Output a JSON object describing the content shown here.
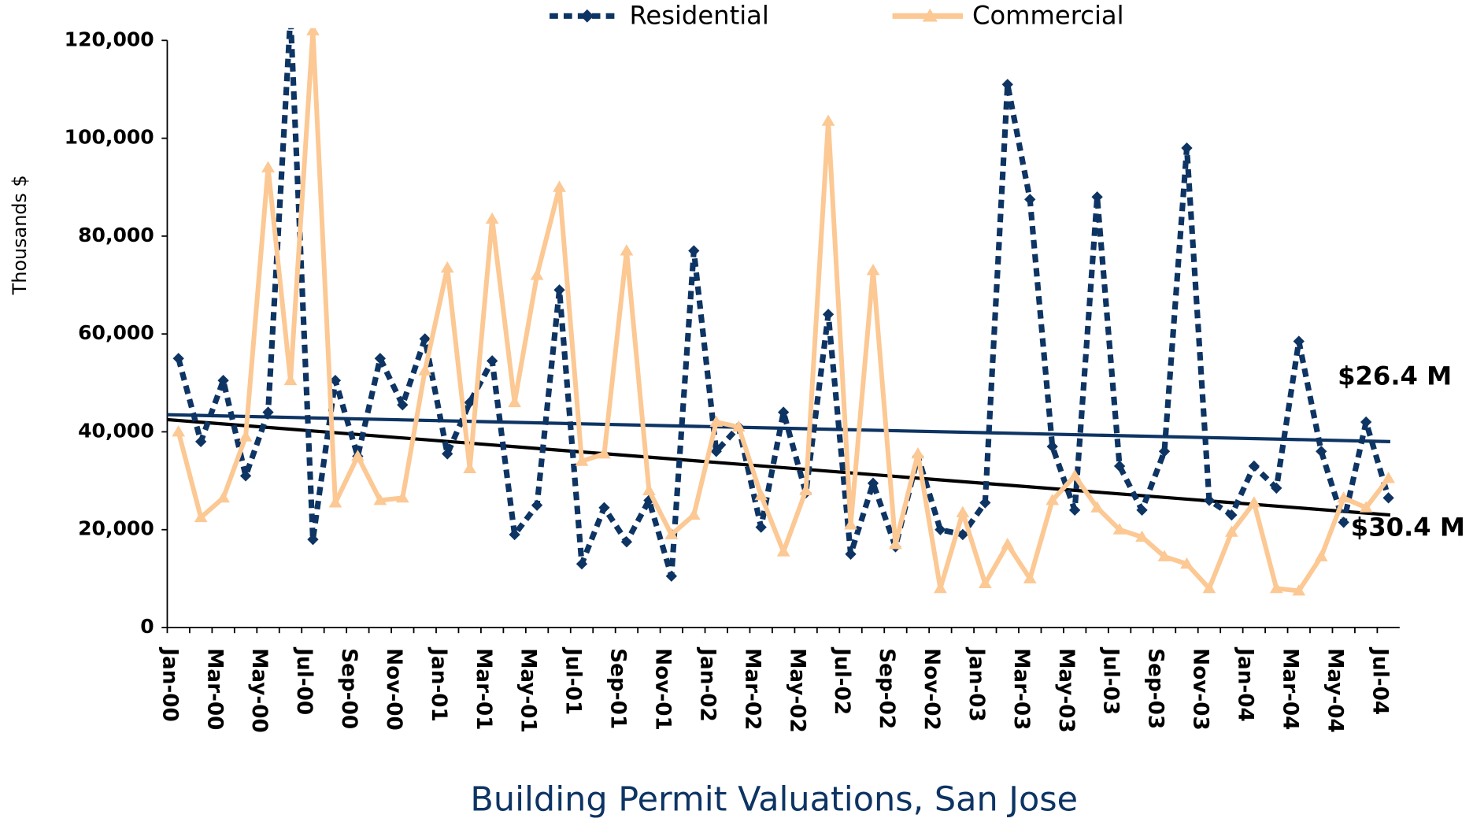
{
  "chart_data": {
    "type": "line",
    "title": "Building Permit Valuations, San Jose",
    "y_label": "Thousands $",
    "categories": [
      "Jan-00",
      null,
      "Mar-00",
      null,
      "May-00",
      null,
      "Jul-00",
      null,
      "Sep-00",
      null,
      "Nov-00",
      null,
      "Jan-01",
      null,
      "Mar-01",
      null,
      "May-01",
      null,
      "Jul-01",
      null,
      "Sep-01",
      null,
      "Nov-01",
      null,
      "Jan-02",
      null,
      "Mar-02",
      null,
      "May-02",
      null,
      "Jul-02",
      null,
      "Sep-02",
      null,
      "Nov-02",
      null,
      "Jan-03",
      null,
      "Mar-03",
      null,
      "May-03",
      null,
      "Jul-03",
      null,
      "Sep-03",
      null,
      "Nov-03",
      null,
      "Jan-04",
      null,
      "Mar-04",
      null,
      "May-04",
      null,
      "Jul-04"
    ],
    "series": [
      {
        "name": "Residential",
        "color": "#0d3463",
        "style": "dashed",
        "marker": "diamond",
        "values": [
          55000,
          38000,
          50500,
          31000,
          44000,
          125000,
          18000,
          50500,
          35000,
          55000,
          45500,
          59000,
          35500,
          46000,
          54500,
          19000,
          25000,
          69000,
          13000,
          24500,
          17500,
          26000,
          10500,
          77000,
          36000,
          41000,
          20500,
          44000,
          27500,
          64000,
          15000,
          29500,
          16500,
          35000,
          20000,
          19000,
          25500,
          111000,
          87500,
          37000,
          24000,
          88000,
          33000,
          24000,
          36000,
          98000,
          26000,
          23000,
          33000,
          28500,
          58500,
          36000,
          21500,
          42000,
          26500
        ]
      },
      {
        "name": "Commercial",
        "color": "#fcc893",
        "style": "solid",
        "marker": "triangle",
        "values": [
          40000,
          22500,
          26500,
          39000,
          94000,
          50500,
          122000,
          25500,
          35000,
          26000,
          26500,
          52500,
          73500,
          32500,
          83500,
          46000,
          72000,
          90000,
          34000,
          35500,
          77000,
          28000,
          19000,
          23000,
          42000,
          41000,
          27000,
          15500,
          28000,
          103500,
          21000,
          73000,
          17000,
          35500,
          8000,
          23500,
          9000,
          17000,
          10000,
          26000,
          31000,
          24500,
          20000,
          18500,
          14500,
          13000,
          8000,
          19500,
          25500,
          8000,
          7500,
          14500,
          26500,
          24500,
          30500
        ]
      }
    ],
    "trendlines": [
      {
        "color": "#0d3463",
        "values": [
          43500,
          38000
        ]
      },
      {
        "color": "#000000",
        "values": [
          42500,
          23000
        ]
      }
    ],
    "annotations": [
      "$26.4 M",
      "$30.4 M"
    ],
    "ylim": [
      0,
      120000
    ],
    "yticks": [
      0,
      {
        "value": 20000,
        "label": "20,000"
      },
      {
        "value": 40000,
        "label": "40,000"
      },
      {
        "value": 60000,
        "label": "60,000"
      },
      {
        "value": 80000,
        "label": "80,000"
      },
      {
        "value": 100000,
        "label": "100,000"
      },
      {
        "value": 120000,
        "label": "120,000"
      }
    ],
    "legend": "top"
  }
}
